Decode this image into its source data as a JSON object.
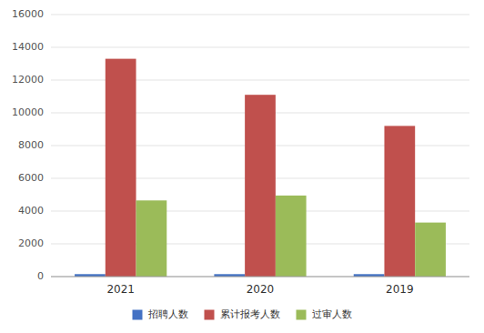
{
  "chart_data": {
    "type": "bar",
    "categories": [
      "2021",
      "2020",
      "2019"
    ],
    "series": [
      {
        "name": "招聘人数",
        "color": "#4472C4",
        "values": [
          150,
          150,
          150
        ]
      },
      {
        "name": "累计报考人数",
        "color": "#C0504D",
        "values": [
          13300,
          11100,
          9200
        ]
      },
      {
        "name": "过审人数",
        "color": "#9BBB59",
        "values": [
          4650,
          4950,
          3300
        ]
      }
    ],
    "ylim": [
      0,
      16000
    ],
    "yticks": [
      0,
      2000,
      4000,
      6000,
      8000,
      10000,
      12000,
      14000,
      16000
    ],
    "grid": true,
    "legend": "bottom"
  }
}
